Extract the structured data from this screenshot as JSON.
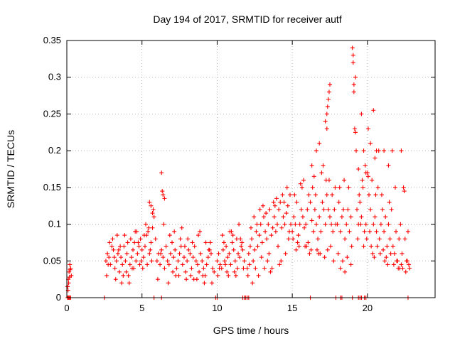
{
  "chart_data": {
    "type": "scatter",
    "title": "Day 194 of 2017, SRMTID for receiver autf",
    "xlabel": "GPS time / hours",
    "ylabel": "SRMTID / TECUs",
    "xlim": [
      0,
      24.5
    ],
    "ylim": [
      0,
      0.35
    ],
    "xticks": [
      0,
      5,
      10,
      15,
      20
    ],
    "yticks": [
      0,
      0.05,
      0.1,
      0.15,
      0.2,
      0.25,
      0.3,
      0.35
    ],
    "xtick_labels": [
      "0",
      "5",
      "10",
      "15",
      "20"
    ],
    "ytick_labels": [
      "0",
      "0.05",
      "0.1",
      "0.15",
      "0.2",
      "0.25",
      "0.3",
      "0.35"
    ],
    "grid": true,
    "marker": "+",
    "color": "#ff0000",
    "series": [
      {
        "name": "SRMTID",
        "x": [
          0.05,
          0.1,
          0.15,
          0.2,
          0.25,
          0.3,
          0.12,
          0.18,
          0.22,
          0.08,
          2.6,
          2.7,
          2.8,
          2.9,
          3.0,
          3.1,
          3.2,
          3.3,
          3.4,
          3.5,
          3.6,
          3.7,
          3.8,
          3.9,
          4.0,
          4.1,
          4.2,
          4.3,
          4.4,
          4.5,
          4.6,
          4.7,
          4.8,
          4.9,
          5.0,
          5.1,
          5.2,
          5.3,
          5.4,
          5.5,
          5.6,
          5.7,
          5.8,
          5.9,
          2.65,
          2.85,
          3.05,
          3.25,
          3.45,
          3.65,
          3.85,
          4.05,
          4.25,
          4.45,
          4.65,
          4.85,
          5.05,
          5.25,
          5.45,
          5.65,
          2.75,
          3.15,
          3.55,
          3.95,
          4.35,
          4.75,
          5.15,
          5.55,
          3.35,
          3.75,
          4.15,
          4.55,
          4.95,
          5.35,
          5.75,
          5.5,
          5.6,
          5.7,
          6.3,
          6.4,
          6.5,
          6.35,
          6.0,
          6.1,
          6.2,
          6.3,
          6.4,
          6.5,
          6.6,
          6.7,
          6.8,
          6.9,
          7.0,
          7.1,
          7.2,
          7.3,
          7.4,
          7.5,
          7.6,
          7.7,
          7.8,
          7.9,
          8.0,
          8.1,
          8.2,
          8.3,
          8.4,
          8.5,
          8.6,
          8.7,
          8.8,
          8.9,
          9.0,
          9.1,
          9.2,
          9.3,
          9.4,
          9.5,
          9.6,
          9.7,
          9.8,
          6.05,
          6.45,
          6.85,
          7.25,
          7.65,
          8.05,
          8.45,
          8.85,
          9.25,
          9.65,
          6.25,
          6.75,
          7.15,
          7.55,
          7.95,
          8.35,
          8.75,
          9.15,
          9.55,
          7.05,
          7.45,
          7.85,
          8.25,
          8.65,
          9.05,
          9.45,
          10.0,
          10.1,
          10.2,
          10.3,
          10.4,
          10.5,
          10.6,
          10.7,
          10.8,
          10.9,
          11.0,
          11.1,
          11.2,
          11.3,
          11.4,
          11.5,
          11.6,
          11.7,
          11.8,
          10.05,
          10.35,
          10.65,
          10.95,
          11.25,
          11.55,
          10.15,
          10.45,
          10.75,
          11.05,
          11.35,
          11.65,
          10.55,
          10.85,
          11.15,
          11.45,
          11.75,
          12.0,
          12.1,
          12.2,
          12.3,
          12.4,
          12.5,
          12.6,
          12.7,
          12.8,
          12.9,
          13.0,
          13.1,
          13.2,
          13.3,
          13.4,
          13.5,
          13.6,
          13.7,
          13.8,
          13.9,
          14.0,
          14.1,
          14.2,
          14.3,
          14.4,
          14.5,
          14.6,
          14.7,
          14.8,
          14.9,
          12.05,
          12.35,
          12.65,
          12.95,
          13.25,
          13.55,
          13.85,
          14.15,
          14.45,
          14.75,
          12.15,
          12.45,
          12.75,
          13.05,
          13.35,
          13.65,
          13.95,
          14.25,
          14.55,
          14.85,
          12.25,
          12.55,
          12.85,
          13.15,
          13.45,
          13.75,
          14.05,
          14.35,
          14.65,
          15.0,
          15.1,
          15.2,
          15.3,
          15.4,
          15.5,
          15.6,
          15.7,
          15.8,
          15.9,
          16.0,
          16.1,
          16.2,
          16.3,
          16.4,
          16.5,
          16.6,
          16.7,
          16.8,
          16.9,
          17.0,
          17.1,
          17.2,
          17.3,
          17.4,
          17.5,
          17.6,
          17.7,
          17.8,
          17.9,
          15.05,
          15.35,
          15.65,
          15.95,
          16.25,
          16.55,
          16.85,
          17.15,
          17.45,
          17.75,
          15.15,
          15.45,
          15.75,
          16.05,
          16.35,
          16.65,
          16.95,
          17.25,
          17.55,
          17.85,
          15.25,
          15.55,
          15.85,
          16.15,
          16.45,
          16.75,
          17.05,
          17.35,
          17.65,
          16.3,
          16.8,
          17.2,
          17.3,
          17.4,
          17.45,
          17.5,
          17.3,
          17.35,
          16.6,
          18.0,
          18.1,
          18.2,
          18.3,
          18.4,
          18.5,
          18.6,
          18.7,
          18.8,
          18.9,
          18.05,
          18.35,
          18.65,
          18.95,
          18.15,
          18.45,
          18.75,
          18.2,
          18.5,
          18.9,
          19.0,
          19.05,
          19.1,
          19.15,
          19.2,
          19.25,
          19.1,
          19.05,
          19.2,
          19.3,
          19.4,
          19.5,
          19.6,
          19.7,
          19.8,
          19.9,
          20.0,
          20.1,
          20.2,
          20.3,
          20.4,
          20.5,
          20.6,
          20.7,
          20.8,
          20.9,
          21.0,
          21.1,
          21.2,
          21.3,
          21.4,
          21.5,
          21.6,
          21.7,
          21.8,
          21.9,
          22.0,
          22.1,
          22.2,
          22.3,
          22.4,
          22.5,
          22.6,
          22.7,
          22.8,
          19.35,
          19.65,
          19.95,
          20.25,
          20.55,
          20.85,
          21.15,
          21.45,
          21.75,
          22.05,
          22.35,
          22.65,
          19.45,
          19.75,
          20.05,
          20.35,
          20.65,
          20.95,
          21.25,
          21.55,
          21.85,
          22.15,
          22.45,
          22.75,
          19.55,
          19.85,
          20.15,
          20.45,
          20.75,
          21.05,
          21.35,
          21.65,
          21.95,
          22.25,
          22.55,
          19.6,
          19.75,
          19.9,
          20.05,
          20.2,
          20.4,
          20.5,
          20.6,
          21.1,
          21.4,
          22.25,
          19.4,
          0.05,
          0.1,
          0.15,
          0.2,
          0.25,
          2.5,
          5.8,
          6.3,
          9.9,
          10.0,
          11.7,
          11.8,
          11.9,
          12.0,
          12.1,
          16.2,
          17.9,
          18.2,
          18.3,
          19.0,
          19.4,
          19.5,
          19.6,
          19.8,
          19.9,
          22.7
        ],
        "y": [
          0.015,
          0.025,
          0.035,
          0.045,
          0.04,
          0.03,
          0.02,
          0.028,
          0.038,
          0.01,
          0.05,
          0.06,
          0.055,
          0.045,
          0.07,
          0.065,
          0.04,
          0.05,
          0.06,
          0.035,
          0.055,
          0.045,
          0.07,
          0.05,
          0.06,
          0.03,
          0.045,
          0.055,
          0.065,
          0.075,
          0.05,
          0.06,
          0.07,
          0.08,
          0.065,
          0.055,
          0.07,
          0.085,
          0.09,
          0.06,
          0.075,
          0.095,
          0.11,
          0.08,
          0.03,
          0.075,
          0.08,
          0.025,
          0.065,
          0.02,
          0.085,
          0.075,
          0.08,
          0.04,
          0.09,
          0.045,
          0.04,
          0.1,
          0.095,
          0.05,
          0.045,
          0.055,
          0.07,
          0.035,
          0.04,
          0.075,
          0.085,
          0.065,
          0.085,
          0.03,
          0.02,
          0.09,
          0.05,
          0.045,
          0.12,
          0.13,
          0.125,
          0.115,
          0.17,
          0.14,
          0.135,
          0.145,
          0.05,
          0.06,
          0.045,
          0.065,
          0.055,
          0.04,
          0.07,
          0.05,
          0.045,
          0.06,
          0.075,
          0.055,
          0.065,
          0.04,
          0.05,
          0.06,
          0.07,
          0.045,
          0.055,
          0.035,
          0.05,
          0.065,
          0.06,
          0.04,
          0.055,
          0.07,
          0.05,
          0.045,
          0.035,
          0.06,
          0.05,
          0.04,
          0.03,
          0.045,
          0.055,
          0.065,
          0.06,
          0.04,
          0.035,
          0.025,
          0.1,
          0.085,
          0.03,
          0.095,
          0.08,
          0.025,
          0.09,
          0.075,
          0.02,
          0.06,
          0.02,
          0.09,
          0.08,
          0.025,
          0.075,
          0.085,
          0.02,
          0.075,
          0.035,
          0.03,
          0.07,
          0.03,
          0.025,
          0.03,
          0.065,
          0.05,
          0.06,
          0.045,
          0.04,
          0.065,
          0.05,
          0.07,
          0.055,
          0.06,
          0.045,
          0.075,
          0.065,
          0.05,
          0.08,
          0.06,
          0.055,
          0.07,
          0.065,
          0.05,
          0.03,
          0.085,
          0.035,
          0.09,
          0.03,
          0.08,
          0.04,
          0.075,
          0.03,
          0.085,
          0.04,
          0.075,
          0.045,
          0.09,
          0.035,
          0.1,
          0.04,
          0.04,
          0.06,
          0.07,
          0.08,
          0.05,
          0.065,
          0.09,
          0.07,
          0.085,
          0.1,
          0.075,
          0.11,
          0.09,
          0.08,
          0.1,
          0.12,
          0.085,
          0.095,
          0.11,
          0.09,
          0.1,
          0.12,
          0.13,
          0.095,
          0.11,
          0.1,
          0.115,
          0.125,
          0.09,
          0.1,
          0.03,
          0.02,
          0.1,
          0.055,
          0.115,
          0.035,
          0.125,
          0.045,
          0.13,
          0.08,
          0.045,
          0.11,
          0.03,
          0.125,
          0.05,
          0.04,
          0.135,
          0.05,
          0.06,
          0.14,
          0.095,
          0.04,
          0.12,
          0.04,
          0.06,
          0.13,
          0.07,
          0.14,
          0.15,
          0.09,
          0.11,
          0.1,
          0.13,
          0.085,
          0.1,
          0.12,
          0.11,
          0.095,
          0.1,
          0.12,
          0.14,
          0.13,
          0.105,
          0.09,
          0.12,
          0.1,
          0.08,
          0.11,
          0.09,
          0.13,
          0.12,
          0.1,
          0.14,
          0.12,
          0.11,
          0.1,
          0.09,
          0.12,
          0.1,
          0.08,
          0.075,
          0.15,
          0.07,
          0.065,
          0.14,
          0.06,
          0.055,
          0.16,
          0.05,
          0.14,
          0.07,
          0.16,
          0.075,
          0.15,
          0.065,
          0.17,
          0.16,
          0.07,
          0.15,
          0.065,
          0.155,
          0.07,
          0.06,
          0.165,
          0.06,
          0.18,
          0.065,
          0.14,
          0.18,
          0.21,
          0.24,
          0.25,
          0.27,
          0.28,
          0.29,
          0.23,
          0.26,
          0.2,
          0.1,
          0.13,
          0.09,
          0.11,
          0.12,
          0.08,
          0.1,
          0.12,
          0.09,
          0.11,
          0.06,
          0.05,
          0.055,
          0.07,
          0.15,
          0.16,
          0.15,
          0.04,
          0.035,
          0.045,
          0.34,
          0.33,
          0.29,
          0.23,
          0.3,
          0.2,
          0.28,
          0.32,
          0.225,
          0.12,
          0.1,
          0.13,
          0.11,
          0.15,
          0.09,
          0.1,
          0.17,
          0.14,
          0.12,
          0.16,
          0.1,
          0.11,
          0.09,
          0.15,
          0.08,
          0.1,
          0.12,
          0.09,
          0.11,
          0.07,
          0.1,
          0.08,
          0.12,
          0.07,
          0.06,
          0.09,
          0.05,
          0.08,
          0.1,
          0.06,
          0.15,
          0.08,
          0.05,
          0.09,
          0.04,
          0.08,
          0.16,
          0.08,
          0.07,
          0.14,
          0.06,
          0.05,
          0.13,
          0.045,
          0.04,
          0.04,
          0.05,
          0.14,
          0.07,
          0.165,
          0.06,
          0.07,
          0.14,
          0.055,
          0.06,
          0.15,
          0.04,
          0.145,
          0.045,
          0.1,
          0.18,
          0.09,
          0.055,
          0.2,
          0.065,
          0.045,
          0.2,
          0.05,
          0.045,
          0.035,
          0.25,
          0.2,
          0.17,
          0.23,
          0.21,
          0.255,
          0.19,
          0.2,
          0.2,
          0.18,
          0.2,
          0.175,
          0,
          0,
          0,
          0,
          0,
          0,
          0,
          0,
          0,
          0,
          0,
          0,
          0,
          0,
          0,
          0,
          0,
          0,
          0,
          0,
          0,
          0,
          0,
          0,
          0,
          0
        ]
      }
    ]
  }
}
